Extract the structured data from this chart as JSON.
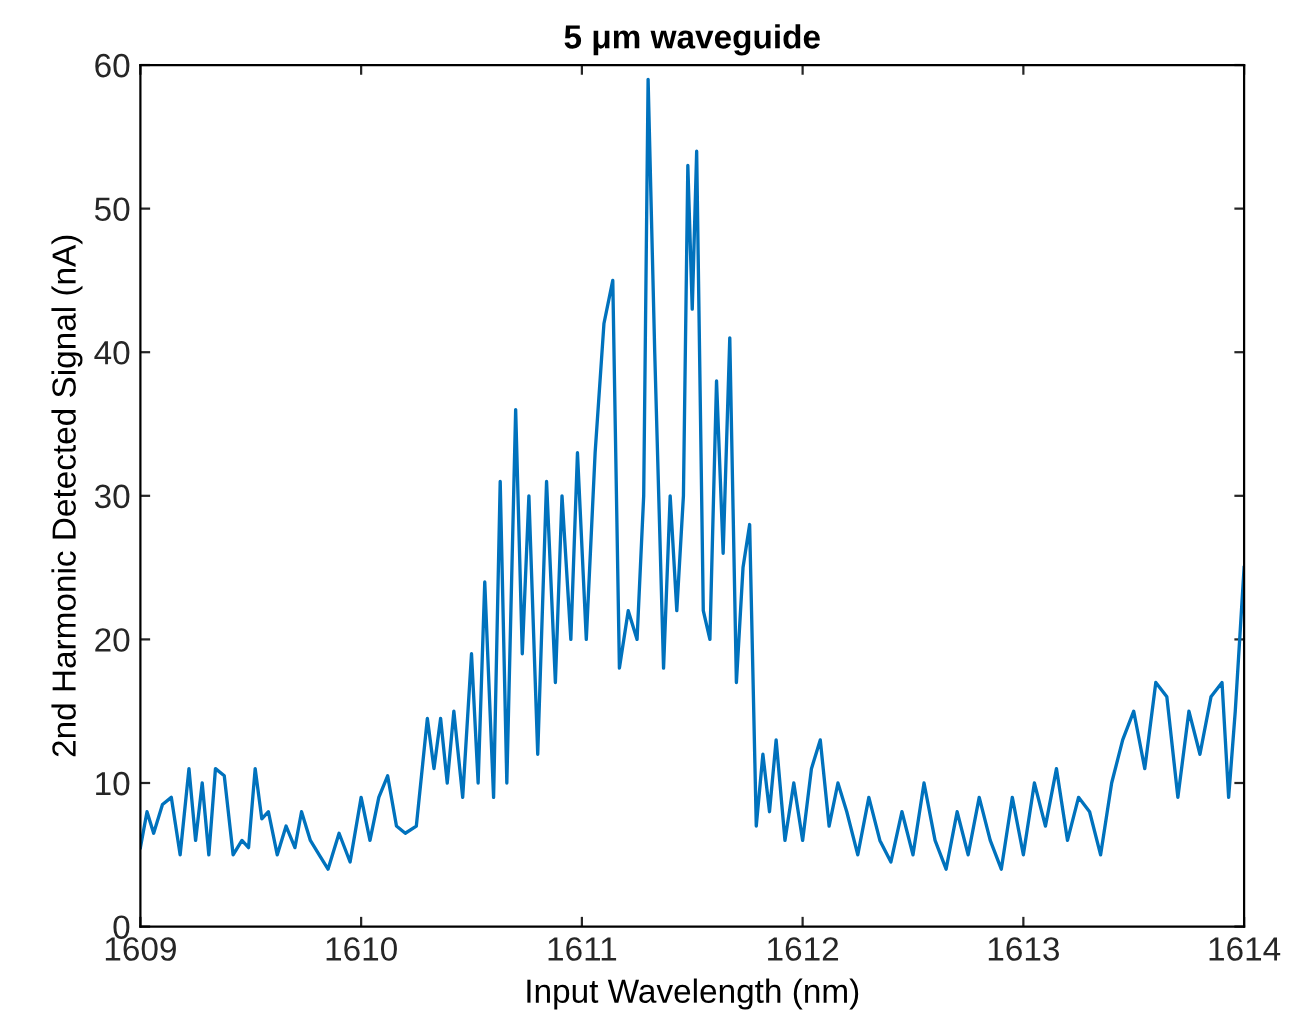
{
  "chart_data": {
    "type": "line",
    "title": "5 μm waveguide",
    "xlabel": "Input Wavelength (nm)",
    "ylabel": "2nd Harmonic Detected Signal (nA)",
    "xlim": [
      1609,
      1614
    ],
    "ylim": [
      0,
      60
    ],
    "xticks": [
      1609,
      1610,
      1611,
      1612,
      1613,
      1614
    ],
    "yticks": [
      0,
      10,
      20,
      30,
      40,
      50,
      60
    ],
    "grid": false,
    "legend": false,
    "marker": "none",
    "line_style": "solid",
    "series": [
      {
        "color": "#0072bd",
        "x": [
          1609.0,
          1609.03,
          1609.06,
          1609.1,
          1609.14,
          1609.18,
          1609.22,
          1609.25,
          1609.28,
          1609.31,
          1609.34,
          1609.38,
          1609.42,
          1609.46,
          1609.49,
          1609.52,
          1609.55,
          1609.58,
          1609.62,
          1609.66,
          1609.7,
          1609.73,
          1609.77,
          1609.81,
          1609.85,
          1609.9,
          1609.95,
          1610.0,
          1610.04,
          1610.08,
          1610.12,
          1610.16,
          1610.2,
          1610.25,
          1610.3,
          1610.33,
          1610.36,
          1610.39,
          1610.42,
          1610.46,
          1610.5,
          1610.53,
          1610.56,
          1610.6,
          1610.63,
          1610.66,
          1610.7,
          1610.73,
          1610.76,
          1610.8,
          1610.84,
          1610.88,
          1610.91,
          1610.95,
          1610.98,
          1611.02,
          1611.06,
          1611.1,
          1611.14,
          1611.17,
          1611.21,
          1611.25,
          1611.28,
          1611.3,
          1611.33,
          1611.37,
          1611.4,
          1611.43,
          1611.46,
          1611.48,
          1611.5,
          1611.52,
          1611.55,
          1611.58,
          1611.61,
          1611.64,
          1611.67,
          1611.7,
          1611.73,
          1611.76,
          1611.79,
          1611.82,
          1611.85,
          1611.88,
          1611.92,
          1611.96,
          1612.0,
          1612.04,
          1612.08,
          1612.12,
          1612.16,
          1612.2,
          1612.25,
          1612.3,
          1612.35,
          1612.4,
          1612.45,
          1612.5,
          1612.55,
          1612.6,
          1612.65,
          1612.7,
          1612.75,
          1612.8,
          1612.85,
          1612.9,
          1612.95,
          1613.0,
          1613.05,
          1613.1,
          1613.15,
          1613.2,
          1613.25,
          1613.3,
          1613.35,
          1613.4,
          1613.45,
          1613.5,
          1613.55,
          1613.6,
          1613.65,
          1613.7,
          1613.75,
          1613.8,
          1613.85,
          1613.9,
          1613.93,
          1613.96,
          1614.0
        ],
        "values": [
          5.5,
          8,
          6.5,
          8.5,
          9,
          5,
          11,
          6,
          10,
          5,
          11,
          10.5,
          5,
          6,
          5.5,
          11,
          7.5,
          8,
          5,
          7,
          5.5,
          8,
          6,
          5,
          4,
          6.5,
          4.5,
          9,
          6,
          9,
          10.5,
          7,
          6.5,
          7,
          14.5,
          11,
          14.5,
          10,
          15,
          9,
          19,
          10,
          24,
          9,
          31,
          10,
          36,
          19,
          30,
          12,
          31,
          17,
          30,
          20,
          33,
          20,
          33,
          42,
          45,
          18,
          22,
          20,
          30,
          59,
          40,
          18,
          30,
          22,
          30,
          53,
          43,
          54,
          22,
          20,
          38,
          26,
          41,
          17,
          25,
          28,
          7,
          12,
          8,
          13,
          6,
          10,
          6,
          11,
          13,
          7,
          10,
          8,
          5,
          9,
          6,
          4.5,
          8,
          5,
          10,
          6,
          4,
          8,
          5,
          9,
          6,
          4,
          9,
          5,
          10,
          7,
          11,
          6,
          9,
          8,
          5,
          10,
          13,
          15,
          11,
          17,
          16,
          9,
          15,
          12,
          16,
          17,
          9,
          15,
          25
        ]
      }
    ]
  }
}
